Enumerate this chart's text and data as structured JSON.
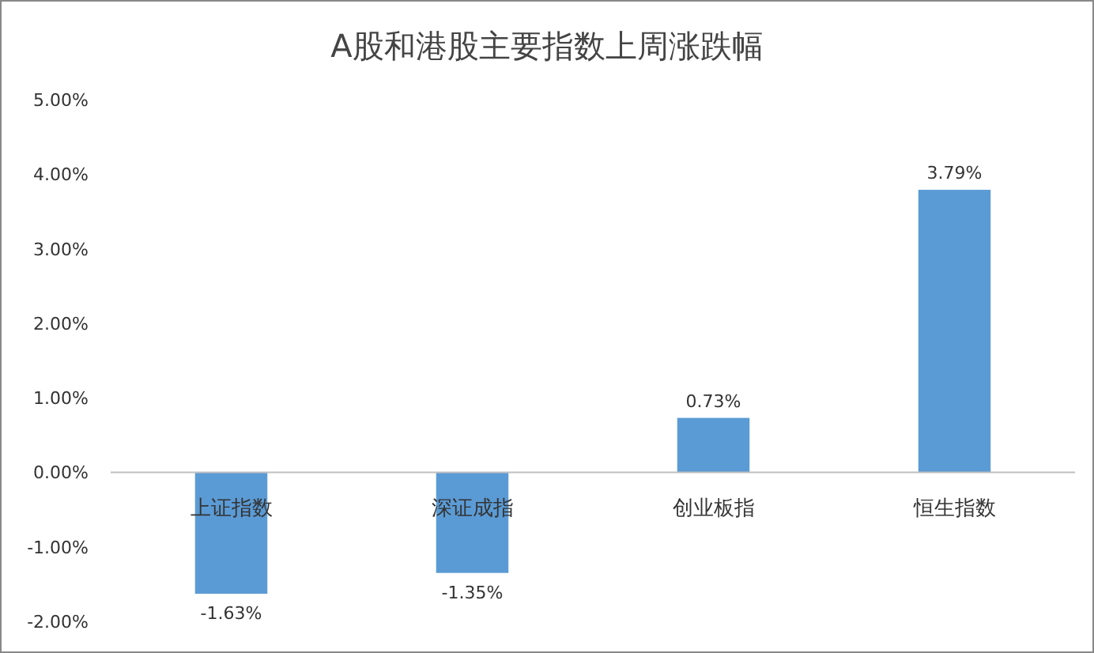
{
  "chart_data": {
    "type": "bar",
    "title": "A股和港股主要指数上周涨跌幅",
    "categories": [
      "上证指数",
      "深证成指",
      "创业板指",
      "恒生指数"
    ],
    "values": [
      -1.63,
      -1.35,
      0.73,
      3.79
    ],
    "value_labels": [
      "-1.63%",
      "-1.35%",
      "0.73%",
      "3.79%"
    ],
    "color": "#5b9bd5",
    "ylim": [
      -2,
      5
    ],
    "yticks": [
      {
        "value": -2,
        "label": "-2.00%"
      },
      {
        "value": -1,
        "label": "-1.00%"
      },
      {
        "value": 0,
        "label": "0.00%"
      },
      {
        "value": 1,
        "label": "1.00%"
      },
      {
        "value": 2,
        "label": "2.00%"
      },
      {
        "value": 3,
        "label": "3.00%"
      },
      {
        "value": 4,
        "label": "4.00%"
      },
      {
        "value": 5,
        "label": "5.00%"
      }
    ]
  }
}
